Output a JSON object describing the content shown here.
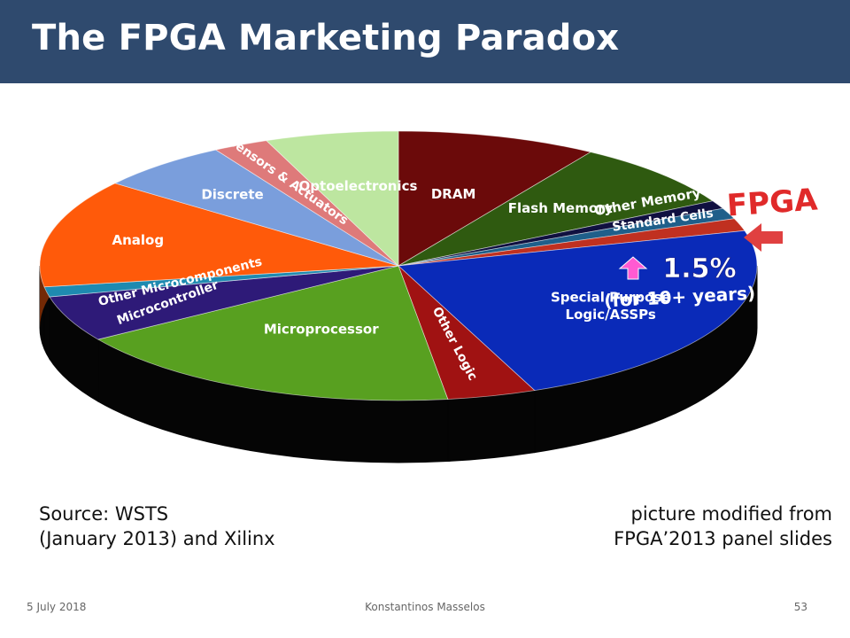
{
  "slide": {
    "title": "The FPGA Marketing Paradox",
    "source_line1": "Source: WSTS",
    "source_line2": "(January 2013) and Xilinx",
    "credit_line1": "picture modified from",
    "credit_line2": "FPGA’2013 panel slides"
  },
  "footer": {
    "date": "5 July 2018",
    "author": "Konstantinos Masselos",
    "page": "53"
  },
  "chart_data": {
    "type": "pie",
    "title": "",
    "slices": [
      {
        "label": "DRAM",
        "value": 9.0,
        "color": "#6b0a0a"
      },
      {
        "label": "Flash Memory",
        "value": 8.0,
        "color": "#2f5a10"
      },
      {
        "label": "Other Memory",
        "value": 1.0,
        "color": "#101040"
      },
      {
        "label": "Standard Cells",
        "value": 1.3,
        "color": "#1f5f8a"
      },
      {
        "label": "FPGA",
        "value": 1.5,
        "color": "#c03020"
      },
      {
        "label": "Special Purpose Logic/ASSPs",
        "value": 23.0,
        "color": "#0a2ab8"
      },
      {
        "label": "Other Logic",
        "value": 4.0,
        "color": "#a01212"
      },
      {
        "label": "Microprocessor",
        "value": 18.0,
        "color": "#58a020"
      },
      {
        "label": "Microcontroller",
        "value": 5.5,
        "color": "#2e1a78"
      },
      {
        "label": "Other Microcomponents",
        "value": 1.2,
        "color": "#1e8ab0"
      },
      {
        "label": "Analog",
        "value": 13.0,
        "color": "#ff5a0a"
      },
      {
        "label": "Discrete",
        "value": 6.0,
        "color": "#7a9edc"
      },
      {
        "label": "Sensors & Actuators",
        "value": 2.5,
        "color": "#de7a7a"
      },
      {
        "label": "Optoelectronics",
        "value": 6.0,
        "color": "#bde6a0"
      }
    ],
    "annotations": {
      "fpga_label": "FPGA",
      "fpga_share": "1.5%",
      "fpga_note": "(for 10+ years)"
    }
  }
}
